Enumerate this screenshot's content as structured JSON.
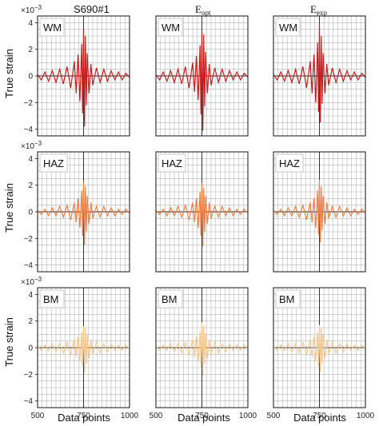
{
  "figure": {
    "sample_title": "S690#1",
    "column_titles": [
      {
        "main": "E",
        "sub": "opt"
      },
      {
        "main": "E",
        "sub": "exp"
      }
    ],
    "y_label": "True strain",
    "x_label": "Data points",
    "multiplier": {
      "base": "×10",
      "exp": "−3"
    },
    "x_ticks": [
      "500",
      "750",
      "1000"
    ],
    "y_ticks": [
      "4",
      "2",
      "0",
      "−2",
      "−4"
    ]
  },
  "chart_data": [
    {
      "type": "line",
      "row": "WM",
      "column": "S690#1",
      "box_label": "WM",
      "color": "#c81e1e",
      "xlim": [
        500,
        1000
      ],
      "ylim": [
        -4.5,
        4.5
      ],
      "x": [
        500,
        520,
        540,
        560,
        580,
        600,
        620,
        640,
        660,
        680,
        700,
        710,
        720,
        730,
        740,
        745,
        750,
        755,
        760,
        765,
        770,
        780,
        790,
        800,
        820,
        840,
        860,
        880,
        900,
        920,
        940,
        960,
        980,
        1000
      ],
      "y": [
        0.1,
        -0.3,
        0.3,
        -0.4,
        0.4,
        -0.5,
        0.5,
        -0.6,
        0.7,
        -0.9,
        1.1,
        -1.3,
        1.6,
        -1.9,
        2.4,
        -2.8,
        3.5,
        -3.8,
        3.0,
        -2.2,
        1.7,
        -1.3,
        0.9,
        -0.7,
        0.6,
        -0.5,
        0.5,
        -0.4,
        0.4,
        -0.3,
        0.3,
        -0.3,
        0.2,
        -0.1
      ]
    },
    {
      "type": "line",
      "row": "WM",
      "column": "E_opt",
      "box_label": "WM",
      "color": "#c81e1e",
      "xlim": [
        500,
        1000
      ],
      "ylim": [
        -4.5,
        4.5
      ],
      "x": [
        500,
        520,
        540,
        560,
        580,
        600,
        620,
        640,
        660,
        680,
        700,
        710,
        720,
        730,
        740,
        745,
        750,
        755,
        760,
        765,
        770,
        780,
        790,
        800,
        820,
        840,
        860,
        880,
        900,
        920,
        940,
        960,
        980,
        1000
      ],
      "y": [
        0.1,
        -0.3,
        0.3,
        -0.4,
        0.4,
        -0.5,
        0.5,
        -0.6,
        0.7,
        -0.9,
        1.0,
        -1.2,
        1.5,
        -1.8,
        2.3,
        -2.9,
        3.3,
        -4.1,
        3.1,
        -2.3,
        1.8,
        -1.3,
        0.9,
        -0.7,
        0.6,
        -0.5,
        0.5,
        -0.4,
        0.4,
        -0.3,
        0.3,
        -0.3,
        0.2,
        -0.1
      ]
    },
    {
      "type": "line",
      "row": "WM",
      "column": "E_exp",
      "box_label": "WM",
      "color": "#c81e1e",
      "xlim": [
        500,
        1000
      ],
      "ylim": [
        -4.5,
        4.5
      ],
      "x": [
        500,
        520,
        540,
        560,
        580,
        600,
        620,
        640,
        660,
        680,
        700,
        710,
        720,
        730,
        740,
        745,
        750,
        755,
        760,
        765,
        770,
        780,
        790,
        800,
        820,
        840,
        860,
        880,
        900,
        920,
        940,
        960,
        980,
        1000
      ],
      "y": [
        0.1,
        -0.3,
        0.3,
        -0.4,
        0.4,
        -0.5,
        0.5,
        -0.6,
        0.7,
        -0.9,
        1.1,
        -1.3,
        1.6,
        -2.0,
        2.5,
        -2.7,
        3.9,
        -3.5,
        3.0,
        -2.1,
        1.7,
        -1.3,
        0.9,
        -0.7,
        0.6,
        -0.5,
        0.5,
        -0.4,
        0.4,
        -0.3,
        0.3,
        -0.3,
        0.2,
        -0.1
      ]
    },
    {
      "type": "line",
      "row": "HAZ",
      "column": "S690#1",
      "box_label": "HAZ",
      "color": "#ee7f45",
      "xlim": [
        500,
        1000
      ],
      "ylim": [
        -4.5,
        4.5
      ],
      "x": [
        500,
        520,
        540,
        560,
        580,
        600,
        620,
        640,
        660,
        680,
        700,
        710,
        720,
        730,
        740,
        745,
        750,
        755,
        760,
        765,
        770,
        780,
        790,
        800,
        820,
        840,
        860,
        880,
        900,
        920,
        940,
        960,
        980,
        1000
      ],
      "y": [
        0.1,
        -0.2,
        0.2,
        -0.3,
        0.3,
        -0.3,
        0.4,
        -0.4,
        0.5,
        -0.6,
        0.7,
        -0.8,
        1.0,
        -1.2,
        1.6,
        -1.8,
        2.3,
        -2.5,
        1.9,
        -1.5,
        1.2,
        -0.9,
        0.7,
        -0.5,
        0.4,
        -0.4,
        0.4,
        -0.3,
        0.3,
        -0.3,
        0.2,
        -0.2,
        0.2,
        -0.1
      ]
    },
    {
      "type": "line",
      "row": "HAZ",
      "column": "E_opt",
      "box_label": "HAZ",
      "color": "#ee7f45",
      "xlim": [
        500,
        1000
      ],
      "ylim": [
        -4.5,
        4.5
      ],
      "x": [
        500,
        520,
        540,
        560,
        580,
        600,
        620,
        640,
        660,
        680,
        700,
        710,
        720,
        730,
        740,
        745,
        750,
        755,
        760,
        765,
        770,
        780,
        790,
        800,
        820,
        840,
        860,
        880,
        900,
        920,
        940,
        960,
        980,
        1000
      ],
      "y": [
        0.1,
        -0.2,
        0.2,
        -0.3,
        0.3,
        -0.3,
        0.4,
        -0.4,
        0.5,
        -0.6,
        0.7,
        -0.8,
        1.0,
        -1.2,
        1.5,
        -1.8,
        2.2,
        -2.6,
        1.8,
        -1.5,
        1.2,
        -0.9,
        0.7,
        -0.5,
        0.4,
        -0.4,
        0.4,
        -0.3,
        0.3,
        -0.3,
        0.2,
        -0.2,
        0.2,
        -0.1
      ]
    },
    {
      "type": "line",
      "row": "HAZ",
      "column": "E_exp",
      "box_label": "HAZ",
      "color": "#ee7f45",
      "xlim": [
        500,
        1000
      ],
      "ylim": [
        -4.5,
        4.5
      ],
      "x": [
        500,
        520,
        540,
        560,
        580,
        600,
        620,
        640,
        660,
        680,
        700,
        710,
        720,
        730,
        740,
        745,
        750,
        755,
        760,
        765,
        770,
        780,
        790,
        800,
        820,
        840,
        860,
        880,
        900,
        920,
        940,
        960,
        980,
        1000
      ],
      "y": [
        0.1,
        -0.2,
        0.2,
        -0.3,
        0.3,
        -0.3,
        0.4,
        -0.4,
        0.5,
        -0.6,
        0.7,
        -0.8,
        1.0,
        -1.2,
        1.6,
        -1.7,
        2.4,
        -2.3,
        1.9,
        -1.4,
        1.2,
        -0.9,
        0.7,
        -0.5,
        0.4,
        -0.4,
        0.4,
        -0.3,
        0.3,
        -0.3,
        0.2,
        -0.2,
        0.2,
        -0.1
      ]
    },
    {
      "type": "line",
      "row": "BM",
      "column": "S690#1",
      "box_label": "BM",
      "color": "#f6c890",
      "xlim": [
        500,
        1000
      ],
      "ylim": [
        -4.5,
        4.5
      ],
      "x": [
        500,
        520,
        540,
        560,
        580,
        600,
        620,
        640,
        660,
        680,
        700,
        710,
        720,
        730,
        740,
        745,
        750,
        755,
        760,
        765,
        770,
        780,
        790,
        800,
        820,
        840,
        860,
        880,
        900,
        920,
        940,
        960,
        980,
        1000
      ],
      "y": [
        0.1,
        -0.2,
        0.2,
        -0.2,
        0.3,
        -0.3,
        0.3,
        -0.4,
        0.4,
        -0.5,
        0.6,
        -0.7,
        0.8,
        -1.0,
        1.2,
        -1.4,
        1.6,
        -1.9,
        1.5,
        -1.2,
        1.0,
        -0.8,
        0.6,
        -0.5,
        0.4,
        -0.4,
        0.3,
        -0.3,
        0.3,
        -0.2,
        0.2,
        -0.2,
        0.2,
        -0.1
      ]
    },
    {
      "type": "line",
      "row": "BM",
      "column": "E_opt",
      "box_label": "BM",
      "color": "#f6c890",
      "xlim": [
        500,
        1000
      ],
      "ylim": [
        -4.5,
        4.5
      ],
      "x": [
        500,
        520,
        540,
        560,
        580,
        600,
        620,
        640,
        660,
        680,
        700,
        710,
        720,
        730,
        740,
        745,
        750,
        755,
        760,
        765,
        770,
        780,
        790,
        800,
        820,
        840,
        860,
        880,
        900,
        920,
        940,
        960,
        980,
        1000
      ],
      "y": [
        0.1,
        -0.2,
        0.2,
        -0.2,
        0.3,
        -0.3,
        0.3,
        -0.4,
        0.4,
        -0.5,
        0.6,
        -0.7,
        0.8,
        -1.0,
        1.2,
        -1.5,
        1.9,
        -2.1,
        1.6,
        -1.2,
        1.0,
        -0.8,
        0.6,
        -0.5,
        0.4,
        -0.4,
        0.3,
        -0.3,
        0.3,
        -0.2,
        0.2,
        -0.2,
        0.2,
        -0.1
      ]
    },
    {
      "type": "line",
      "row": "BM",
      "column": "E_exp",
      "box_label": "BM",
      "color": "#f6c890",
      "xlim": [
        500,
        1000
      ],
      "ylim": [
        -4.5,
        4.5
      ],
      "x": [
        500,
        520,
        540,
        560,
        580,
        600,
        620,
        640,
        660,
        680,
        700,
        710,
        720,
        730,
        740,
        745,
        750,
        755,
        760,
        765,
        770,
        780,
        790,
        800,
        820,
        840,
        860,
        880,
        900,
        920,
        940,
        960,
        980,
        1000
      ],
      "y": [
        0.1,
        -0.2,
        0.2,
        -0.2,
        0.3,
        -0.3,
        0.3,
        -0.4,
        0.4,
        -0.5,
        0.6,
        -0.7,
        0.8,
        -1.0,
        1.2,
        -1.4,
        1.7,
        -1.8,
        1.5,
        -1.2,
        1.0,
        -0.8,
        0.6,
        -0.5,
        0.4,
        -0.4,
        0.3,
        -0.3,
        0.3,
        -0.2,
        0.2,
        -0.2,
        0.2,
        -0.1
      ]
    }
  ]
}
